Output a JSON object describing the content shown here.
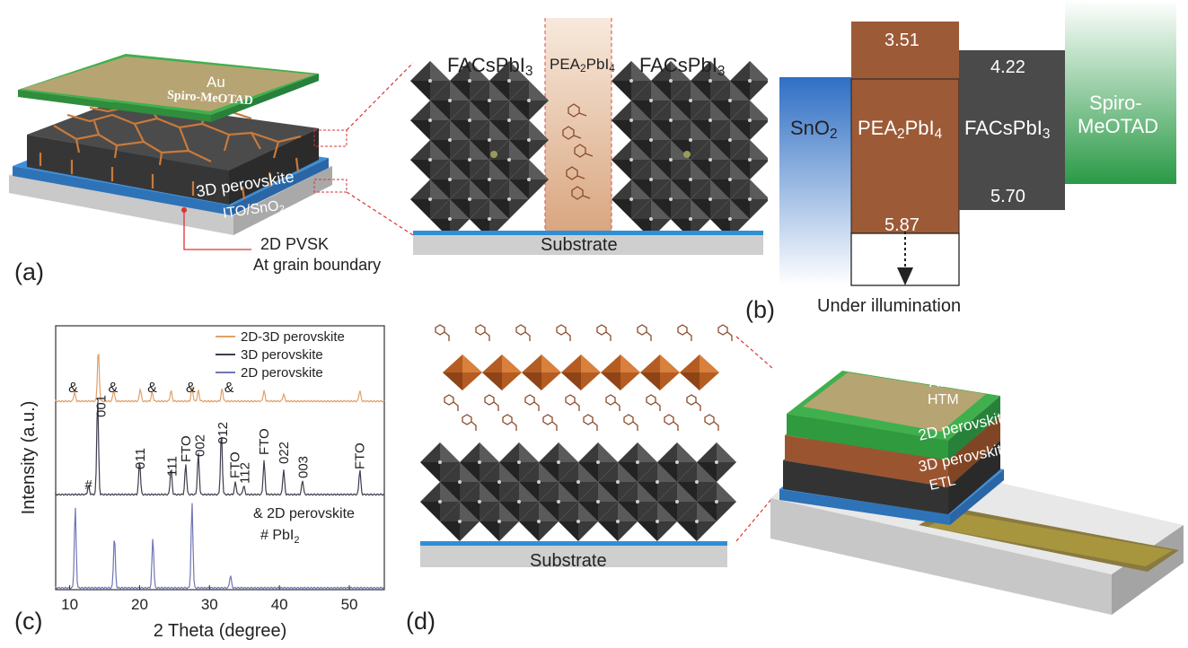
{
  "panel_a": {
    "letter": "(a)",
    "au": "Au",
    "spiro": "Spiro-MeOTAD",
    "perovskite_3d": "3D perovskite",
    "ito_prefix": "ITO/SnO",
    "ito_sub": "2",
    "pvsk_2d": "2D PVSK",
    "grain_boundary": "At grain boundary",
    "left_phase": "FACsPbI",
    "left_phase_sub": "3",
    "mid_phase_a": "PEA",
    "mid_phase_sub_a": "2",
    "mid_phase_b": "PbI",
    "mid_phase_sub_b": "4",
    "right_phase": "FACsPbI",
    "right_phase_sub": "3",
    "substrate": "Substrate"
  },
  "panel_b": {
    "letter": "(b)",
    "sno2": "SnO",
    "sno2_sub": "2",
    "pea_a": "PEA",
    "pea_sub_a": "2",
    "pea_b": "PbI",
    "pea_sub_b": "4",
    "facs": "FACsPbI",
    "facs_sub": "3",
    "spiro_line1": "Spiro-",
    "spiro_line2": "MeOTAD",
    "pea_top": "3.51",
    "pea_bottom": "5.87",
    "facs_top": "4.22",
    "facs_bottom": "5.70",
    "illumination": "Under illumination",
    "colors": {
      "sno2": "#3a78c8",
      "pea": "#9c5a37",
      "facs": "#4a4a4a",
      "spiro": "#2f9e48"
    }
  },
  "panel_c": {
    "letter": "(c)",
    "chart_data": {
      "type": "line",
      "xlabel": "2 Theta (degree)",
      "ylabel": "Intensity (a.u.)",
      "xlim": [
        8,
        55
      ],
      "x_ticks": [
        "10",
        "20",
        "30",
        "40",
        "50"
      ],
      "legend": [
        "2D-3D perovskite",
        "3D perovskite",
        "2D perovskite"
      ],
      "legend_placement": "top-right",
      "series_colors": [
        "#e0a068",
        "#3d3d4d",
        "#7076b4"
      ],
      "peaks_2d3d": [
        10.7,
        14.1,
        16.3,
        20.1,
        21.8,
        24.5,
        27.5,
        28.4,
        31.8,
        37.8,
        40.6,
        51.5
      ],
      "peaks_3d": [
        12.7,
        14.0,
        20.0,
        24.5,
        26.6,
        28.4,
        31.7,
        33.7,
        34.9,
        37.8,
        40.6,
        43.3,
        51.5
      ],
      "peaks_2d": [
        10.8,
        16.4,
        21.9,
        27.5,
        33.0
      ],
      "amp_labels": [
        {
          "text": "&",
          "x": 10.5
        },
        {
          "text": "&",
          "x": 16.2
        },
        {
          "text": "&",
          "x": 21.8
        },
        {
          "text": "&",
          "x": 27.3
        },
        {
          "text": "&",
          "x": 32.8
        }
      ],
      "peak_labels": [
        {
          "text": "#",
          "x": 12.7
        },
        {
          "text": "001",
          "x": 14.5
        },
        {
          "text": "011",
          "x": 20.1
        },
        {
          "text": "111",
          "x": 24.6
        },
        {
          "text": "FTO",
          "x": 26.6
        },
        {
          "text": "002",
          "x": 28.6
        },
        {
          "text": "012",
          "x": 31.9
        },
        {
          "text": "FTO",
          "x": 33.6
        },
        {
          "text": "112",
          "x": 35.0
        },
        {
          "text": "FTO",
          "x": 37.8
        },
        {
          "text": "022",
          "x": 40.6
        },
        {
          "text": "003",
          "x": 43.4
        },
        {
          "text": "FTO",
          "x": 51.5
        }
      ],
      "note_2d": "& 2D perovskite",
      "note_pbi_a": "# PbI",
      "note_pbi_sub": "2"
    }
  },
  "panel_d": {
    "letter": "(d)",
    "substrate": "Substrate",
    "au": "Au",
    "htm": "HTM",
    "perovskite_2d": "2D perovskite",
    "perovskite_3d": "3D perovskite",
    "etl": "ETL"
  }
}
